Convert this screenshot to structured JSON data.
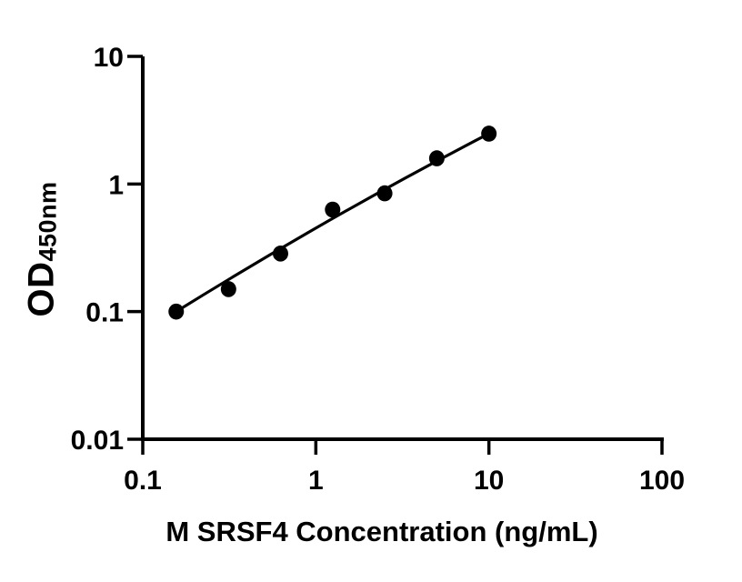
{
  "chart_data": {
    "type": "scatter",
    "title": "",
    "xlabel": "M SRSF4 Concentration (ng/mL)",
    "ylabel": "OD450nm",
    "ylabel_main": "OD",
    "ylabel_sub": "450nm",
    "x_scale": "log",
    "y_scale": "log",
    "xlim": [
      0.1,
      100
    ],
    "ylim": [
      0.01,
      10
    ],
    "x_ticks": [
      {
        "value": 0.1,
        "label": "0.1"
      },
      {
        "value": 1,
        "label": "1"
      },
      {
        "value": 10,
        "label": "10"
      },
      {
        "value": 100,
        "label": "100"
      }
    ],
    "y_ticks": [
      {
        "value": 0.01,
        "label": "0.01"
      },
      {
        "value": 0.1,
        "label": "0.1"
      },
      {
        "value": 1,
        "label": "1"
      },
      {
        "value": 10,
        "label": "10"
      }
    ],
    "points": [
      {
        "x": 0.156,
        "y": 0.1
      },
      {
        "x": 0.313,
        "y": 0.15
      },
      {
        "x": 0.625,
        "y": 0.285
      },
      {
        "x": 1.25,
        "y": 0.63
      },
      {
        "x": 2.5,
        "y": 0.845
      },
      {
        "x": 5,
        "y": 1.59
      },
      {
        "x": 10,
        "y": 2.48
      }
    ],
    "trend_line": {
      "x1": 0.156,
      "y1": 0.1,
      "x2": 10,
      "y2": 2.48
    },
    "grid": false,
    "legend": null,
    "colors": {
      "marker": "#000000",
      "line": "#000000",
      "axis": "#000000",
      "text": "#000000",
      "background": "#ffffff"
    }
  }
}
